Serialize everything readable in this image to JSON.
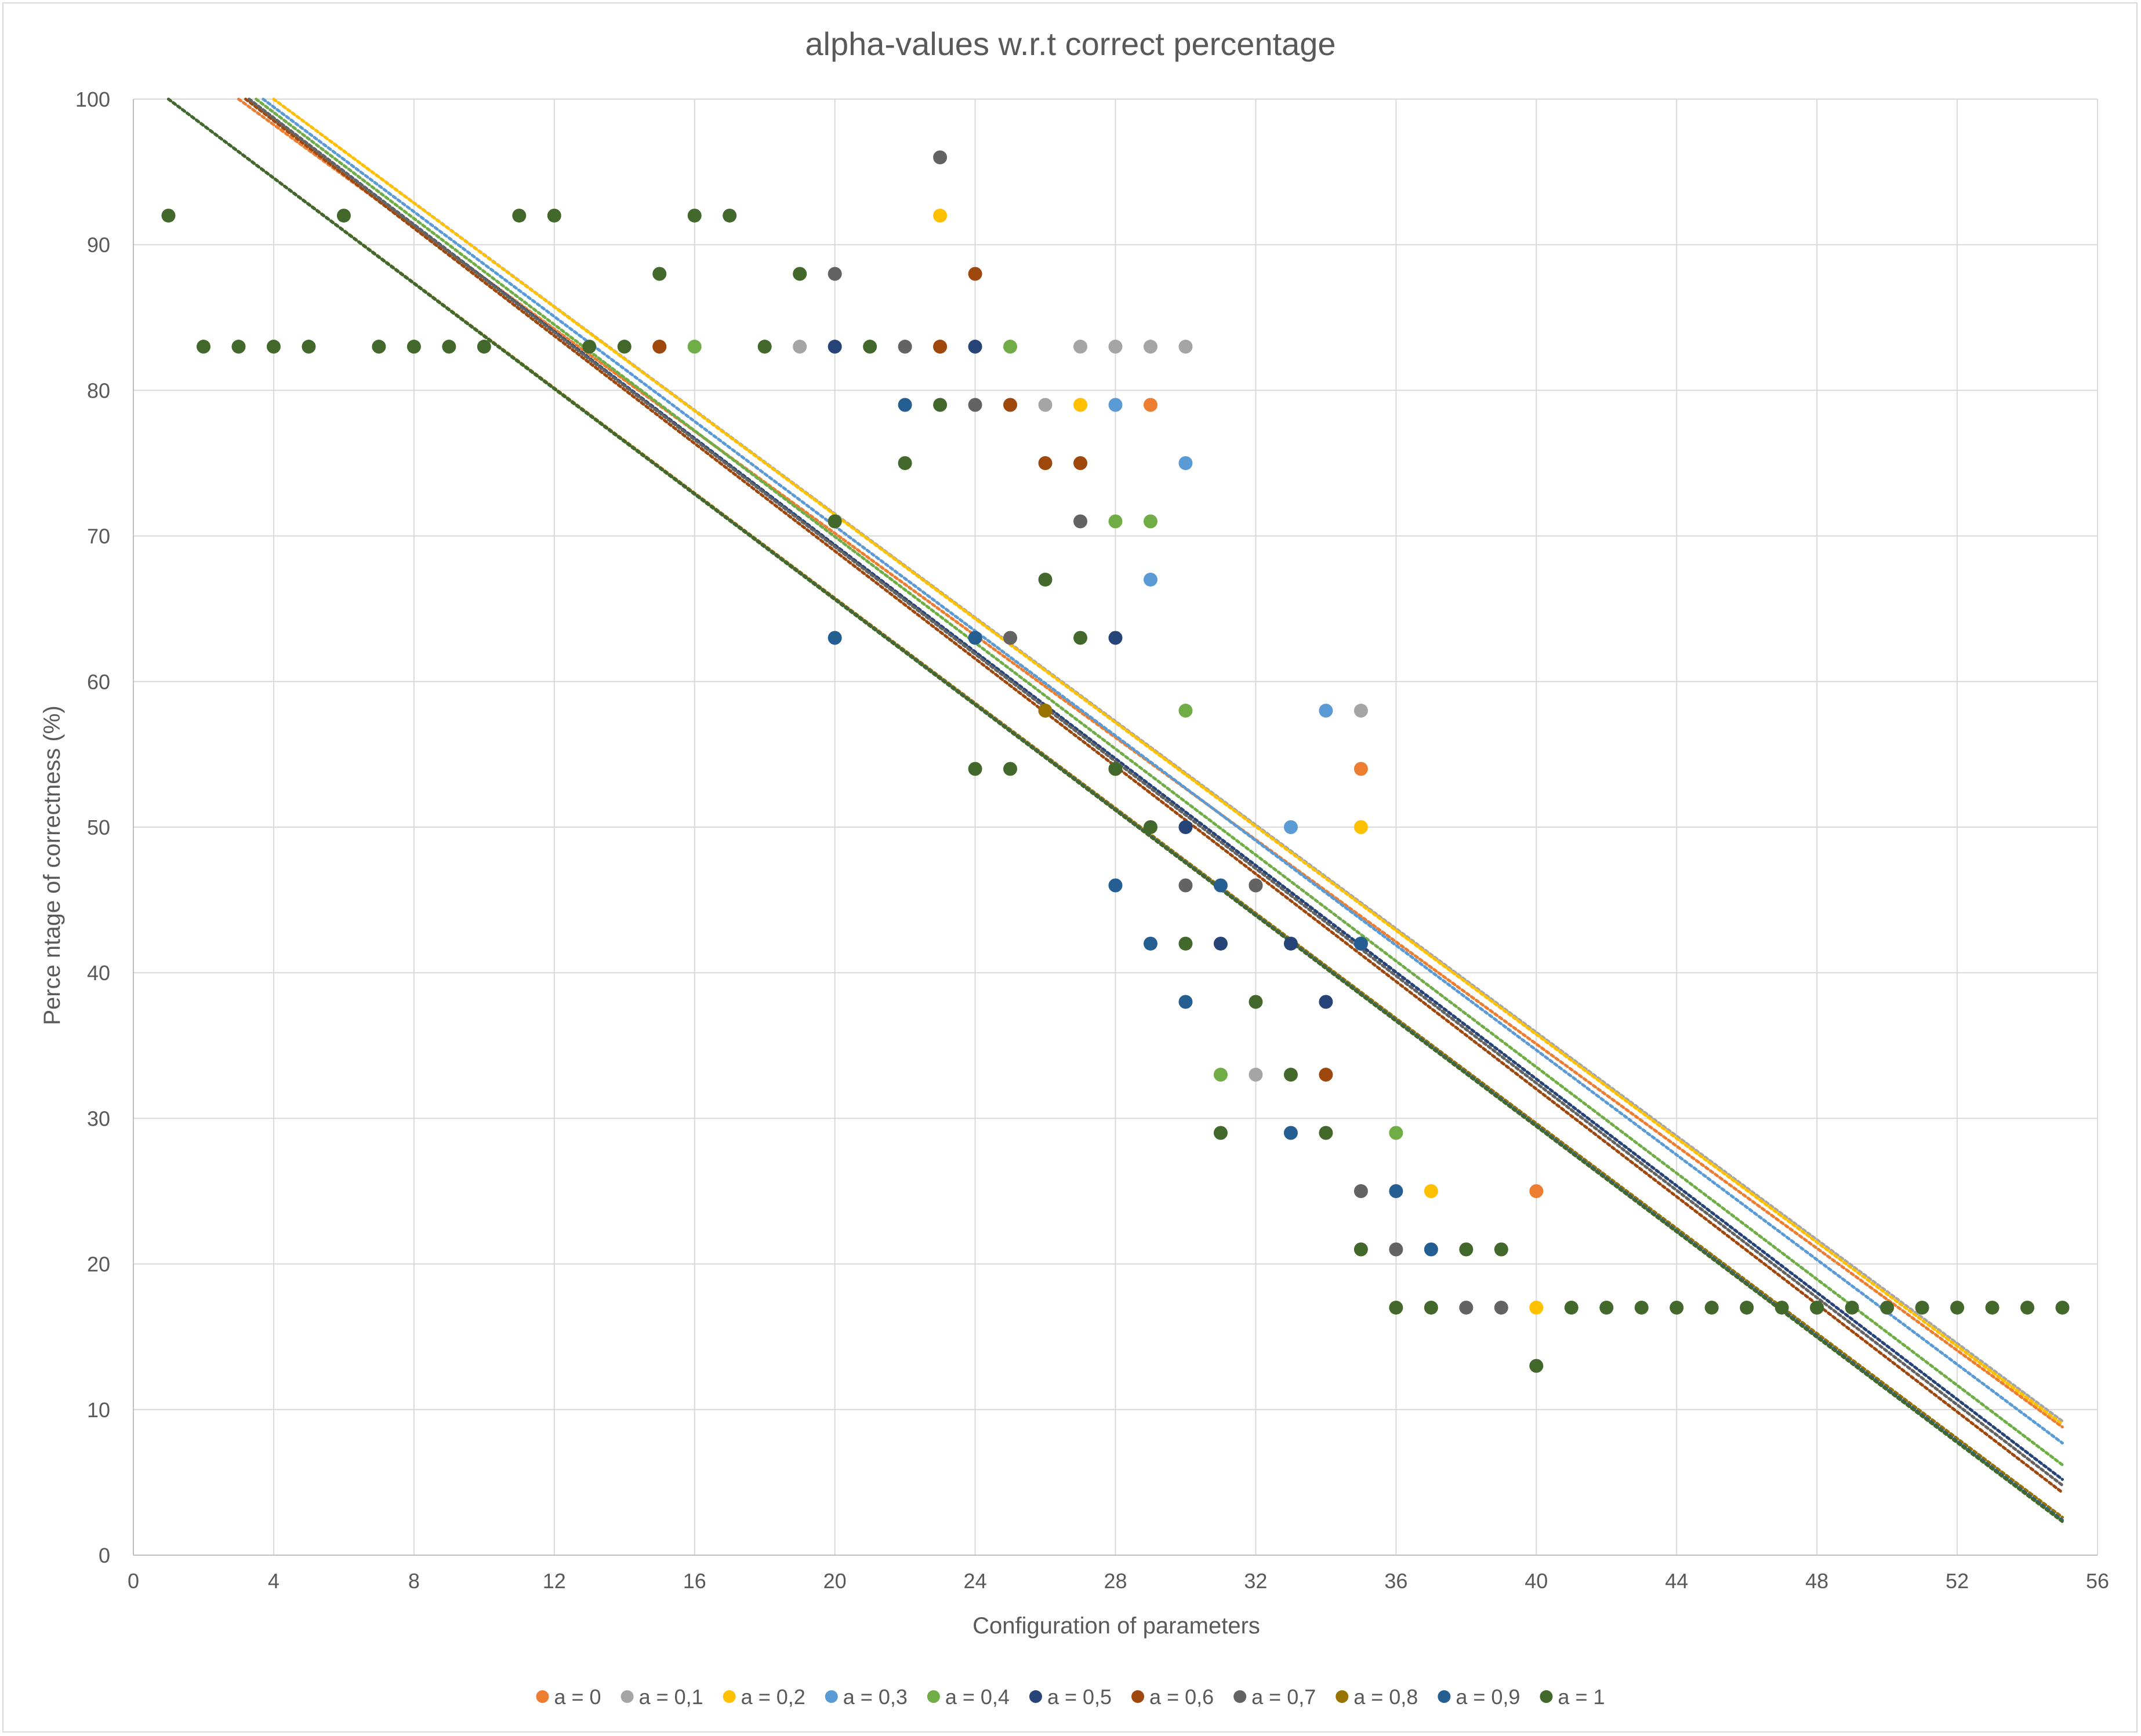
{
  "chart_data": {
    "type": "scatter",
    "title": "alpha-values w.r.t correct percentage",
    "xlabel": "Configuration of parameters",
    "ylabel": "Perce ntage of correctness (%)",
    "xlim": [
      0,
      56
    ],
    "ylim": [
      0,
      100
    ],
    "xticks": [
      0,
      4,
      8,
      12,
      16,
      20,
      24,
      28,
      32,
      36,
      40,
      44,
      48,
      52,
      56
    ],
    "yticks": [
      0,
      10,
      20,
      30,
      40,
      50,
      60,
      70,
      80,
      90,
      100
    ],
    "grid": true,
    "legend_position": "bottom",
    "trendlines": "linear, dotted, one per series",
    "series": [
      {
        "name": "a = 0",
        "color": "#ED7D31",
        "points": [
          [
            15,
            83
          ],
          [
            23,
            83
          ],
          [
            26,
            58
          ],
          [
            29,
            79
          ],
          [
            35,
            54
          ],
          [
            40,
            25
          ]
        ],
        "trend": [
          [
            3,
            100
          ],
          [
            55,
            8.8
          ]
        ]
      },
      {
        "name": "a = 0,1",
        "color": "#A5A5A5",
        "points": [
          [
            19,
            83
          ],
          [
            26,
            79
          ],
          [
            27,
            83
          ],
          [
            28,
            83
          ],
          [
            29,
            83
          ],
          [
            30,
            83
          ],
          [
            32,
            33
          ],
          [
            35,
            58
          ]
        ],
        "trend": [
          [
            4,
            100
          ],
          [
            55,
            9.2
          ]
        ]
      },
      {
        "name": "a = 0,2",
        "color": "#FFC000",
        "points": [
          [
            23,
            92
          ],
          [
            27,
            79
          ],
          [
            35,
            50
          ],
          [
            37,
            25
          ],
          [
            40,
            17
          ]
        ],
        "trend": [
          [
            4,
            100
          ],
          [
            55,
            9.0
          ]
        ]
      },
      {
        "name": "a = 0,3",
        "color": "#5B9BD5",
        "points": [
          [
            28,
            79
          ],
          [
            29,
            67
          ],
          [
            30,
            75
          ],
          [
            33,
            50
          ],
          [
            34,
            58
          ],
          [
            35,
            42
          ]
        ],
        "trend": [
          [
            3.7,
            100
          ],
          [
            55,
            7.7
          ]
        ]
      },
      {
        "name": "a = 0,4",
        "color": "#70AD47",
        "points": [
          [
            16,
            83
          ],
          [
            25,
            83
          ],
          [
            28,
            71
          ],
          [
            29,
            71
          ],
          [
            30,
            58
          ],
          [
            31,
            33
          ],
          [
            36,
            29
          ]
        ],
        "trend": [
          [
            3.5,
            100
          ],
          [
            55,
            6.2
          ]
        ]
      },
      {
        "name": "a = 0,5",
        "color": "#264478",
        "points": [
          [
            20,
            83
          ],
          [
            24,
            83
          ],
          [
            28,
            63
          ],
          [
            30,
            50
          ],
          [
            31,
            42
          ],
          [
            33,
            42
          ],
          [
            34,
            38
          ]
        ],
        "trend": [
          [
            3.3,
            100
          ],
          [
            55,
            5.2
          ]
        ]
      },
      {
        "name": "a = 0,6",
        "color": "#9E480E",
        "points": [
          [
            15,
            83
          ],
          [
            23,
            83
          ],
          [
            24,
            88
          ],
          [
            25,
            79
          ],
          [
            26,
            75
          ],
          [
            27,
            75
          ],
          [
            32,
            46
          ],
          [
            34,
            33
          ]
        ],
        "trend": [
          [
            3.2,
            100
          ],
          [
            55,
            4.3
          ]
        ]
      },
      {
        "name": "a = 0,7",
        "color": "#636363",
        "points": [
          [
            20,
            88
          ],
          [
            22,
            83
          ],
          [
            23,
            96
          ],
          [
            24,
            79
          ],
          [
            25,
            63
          ],
          [
            27,
            71
          ],
          [
            30,
            46
          ],
          [
            32,
            46
          ],
          [
            35,
            25
          ],
          [
            36,
            21
          ],
          [
            38,
            17
          ],
          [
            39,
            17
          ]
        ],
        "trend": [
          [
            3.3,
            100
          ],
          [
            55,
            4.8
          ]
        ]
      },
      {
        "name": "a = 0,8",
        "color": "#997300",
        "points": [
          [
            20,
            71
          ],
          [
            26,
            58
          ],
          [
            28,
            54
          ],
          [
            48,
            17
          ]
        ],
        "trend": [
          [
            1,
            100
          ],
          [
            55,
            2.6
          ]
        ]
      },
      {
        "name": "a = 0,9",
        "color": "#255E91",
        "points": [
          [
            20,
            63
          ],
          [
            22,
            79
          ],
          [
            24,
            63
          ],
          [
            28,
            46
          ],
          [
            29,
            42
          ],
          [
            30,
            38
          ],
          [
            31,
            46
          ],
          [
            33,
            29
          ],
          [
            35,
            42
          ],
          [
            36,
            25
          ],
          [
            37,
            21
          ]
        ],
        "trend": [
          [
            1,
            100
          ],
          [
            55,
            2.4
          ]
        ]
      },
      {
        "name": "a = 1",
        "color": "#43682B",
        "points": [
          [
            1,
            92
          ],
          [
            2,
            83
          ],
          [
            3,
            83
          ],
          [
            4,
            83
          ],
          [
            5,
            83
          ],
          [
            6,
            92
          ],
          [
            7,
            83
          ],
          [
            8,
            83
          ],
          [
            9,
            83
          ],
          [
            10,
            83
          ],
          [
            11,
            92
          ],
          [
            12,
            92
          ],
          [
            13,
            83
          ],
          [
            14,
            83
          ],
          [
            15,
            88
          ],
          [
            16,
            92
          ],
          [
            17,
            92
          ],
          [
            18,
            83
          ],
          [
            19,
            88
          ],
          [
            20,
            71
          ],
          [
            21,
            83
          ],
          [
            22,
            75
          ],
          [
            23,
            79
          ],
          [
            24,
            54
          ],
          [
            25,
            54
          ],
          [
            26,
            67
          ],
          [
            27,
            63
          ],
          [
            28,
            54
          ],
          [
            29,
            50
          ],
          [
            30,
            42
          ],
          [
            31,
            29
          ],
          [
            32,
            38
          ],
          [
            33,
            33
          ],
          [
            34,
            29
          ],
          [
            35,
            21
          ],
          [
            36,
            17
          ],
          [
            37,
            17
          ],
          [
            38,
            21
          ],
          [
            39,
            21
          ],
          [
            40,
            13
          ],
          [
            41,
            17
          ],
          [
            42,
            17
          ],
          [
            43,
            17
          ],
          [
            44,
            17
          ],
          [
            45,
            17
          ],
          [
            46,
            17
          ],
          [
            47,
            17
          ],
          [
            48,
            17
          ],
          [
            49,
            17
          ],
          [
            50,
            17
          ],
          [
            51,
            17
          ],
          [
            52,
            17
          ],
          [
            53,
            17
          ],
          [
            54,
            17
          ],
          [
            55,
            17
          ]
        ],
        "trend": [
          [
            1,
            100
          ],
          [
            55,
            2.3
          ]
        ]
      }
    ]
  }
}
